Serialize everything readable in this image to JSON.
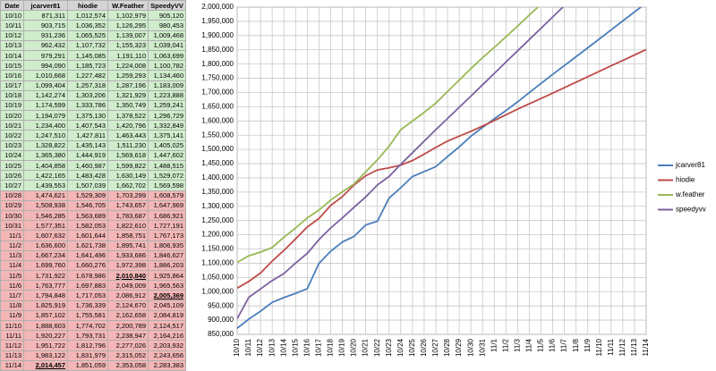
{
  "table": {
    "header": [
      "Date",
      "jcarver81",
      "hiodie",
      "W.Feather",
      "SpeedyVV"
    ]
  },
  "chart_data": {
    "type": "line",
    "categories": [
      "10/10",
      "10/11",
      "10/12",
      "10/13",
      "10/14",
      "10/15",
      "10/16",
      "10/17",
      "10/18",
      "10/19",
      "10/20",
      "10/21",
      "10/22",
      "10/23",
      "10/24",
      "10/25",
      "10/26",
      "10/27",
      "10/28",
      "10/29",
      "10/30",
      "10/31",
      "11/1",
      "11/2",
      "11/3",
      "11/4",
      "11/5",
      "11/6",
      "11/7",
      "11/8",
      "11/9",
      "11/10",
      "11/11",
      "11/12",
      "11/13",
      "11/14"
    ],
    "series": [
      {
        "name": "jcarver81",
        "color": "#4a7ebb",
        "values": [
          871311,
          903715,
          931236,
          962432,
          979291,
          994090,
          1010668,
          1099404,
          1142274,
          1174599,
          1194079,
          1234400,
          1247510,
          1328822,
          1365380,
          1404858,
          1422165,
          1439553,
          1474621,
          1508938,
          1546285,
          1577351,
          1607632,
          1636600,
          1667234,
          1699760,
          1731922,
          1763777,
          1794848,
          1825919,
          1857102,
          1888603,
          1920227,
          1951722,
          1983122,
          2014457
        ],
        "value_labels": [
          "871,311",
          "903,715",
          "931,236",
          "962,432",
          "979,291",
          "994,090",
          "1,010,668",
          "1,099,404",
          "1,142,274",
          "1,174,599",
          "1,194,079",
          "1,234,400",
          "1,247,510",
          "1,328,822",
          "1,365,380",
          "1,404,858",
          "1,422,165",
          "1,439,553",
          "1,474,621",
          "1,508,938",
          "1,546,285",
          "1,577,351",
          "1,607,632",
          "1,636,600",
          "1,667,234",
          "1,699,760",
          "1,731,922",
          "1,763,777",
          "1,794,848",
          "1,825,919",
          "1,857,102",
          "1,888,603",
          "1,920,227",
          "1,951,722",
          "1,983,122",
          "2,014,457"
        ]
      },
      {
        "name": "hiodie",
        "color": "#be4b48",
        "values": [
          1012574,
          1036352,
          1065525,
          1107732,
          1145085,
          1185723,
          1227482,
          1257318,
          1303206,
          1333786,
          1375130,
          1407543,
          1427811,
          1435143,
          1444919,
          1460987,
          1483428,
          1507039,
          1529309,
          1546705,
          1563689,
          1582053,
          1601644,
          1621738,
          1641496,
          1660276,
          1678986,
          1697883,
          1717053,
          1736339,
          1755581,
          1774702,
          1793731,
          1812796,
          1831979,
          1851059
        ],
        "value_labels": [
          "1,012,574",
          "1,036,352",
          "1,065,525",
          "1,107,732",
          "1,145,085",
          "1,185,723",
          "1,227,482",
          "1,257,318",
          "1,303,206",
          "1,333,786",
          "1,375,130",
          "1,407,543",
          "1,427,811",
          "1,435,143",
          "1,444,919",
          "1,460,987",
          "1,483,428",
          "1,507,039",
          "1,529,309",
          "1,546,705",
          "1,563,689",
          "1,582,053",
          "1,601,644",
          "1,621,738",
          "1,641,496",
          "1,660,276",
          "1,678,986",
          "1,697,883",
          "1,717,053",
          "1,736,339",
          "1,755,581",
          "1,774,702",
          "1,793,731",
          "1,812,796",
          "1,831,979",
          "1,851,059"
        ]
      },
      {
        "name": "w.feather",
        "color": "#98b954",
        "values": [
          1102979,
          1126295,
          1139007,
          1155323,
          1191110,
          1224008,
          1259293,
          1287196,
          1321929,
          1350749,
          1378522,
          1420796,
          1463443,
          1511230,
          1569618,
          1599822,
          1630149,
          1662702,
          1703299,
          1743657,
          1783687,
          1822610,
          1858751,
          1895741,
          1933686,
          1972398,
          2010840,
          2049009,
          2086912,
          2124670,
          2162658,
          2200789,
          2238947,
          2277026,
          2315052,
          2353058
        ],
        "value_labels": [
          "1,102,979",
          "1,126,295",
          "1,139,007",
          "1,155,323",
          "1,191,110",
          "1,224,008",
          "1,259,293",
          "1,287,196",
          "1,321,929",
          "1,350,749",
          "1,378,522",
          "1,420,796",
          "1,463,443",
          "1,511,230",
          "1,569,618",
          "1,599,822",
          "1,630,149",
          "1,662,702",
          "1,703,299",
          "1,743,657",
          "1,783,687",
          "1,822,610",
          "1,858,751",
          "1,895,741",
          "1,933,686",
          "1,972,398",
          "2,010,840",
          "2,049,009",
          "2,086,912",
          "2,124,670",
          "2,162,658",
          "2,200,789",
          "2,238,947",
          "2,277,026",
          "2,315,052",
          "2,353,058"
        ]
      },
      {
        "name": "speedyvv",
        "color": "#7d60a0",
        "values": [
          905120,
          980453,
          1009468,
          1039041,
          1063699,
          1100782,
          1134460,
          1183009,
          1223888,
          1259241,
          1296729,
          1332849,
          1375141,
          1405025,
          1447602,
          1488515,
          1529072,
          1569598,
          1608579,
          1647969,
          1686921,
          1727191,
          1767173,
          1806935,
          1846627,
          1886203,
          1925864,
          1965563,
          2005369,
          2045109,
          2084819,
          2124517,
          2164216,
          2203932,
          2243656,
          2283383
        ],
        "value_labels": [
          "905,120",
          "980,453",
          "1,009,468",
          "1,039,041",
          "1,063,699",
          "1,100,782",
          "1,134,460",
          "1,183,009",
          "1,223,888",
          "1,259,241",
          "1,296,729",
          "1,332,849",
          "1,375,141",
          "1,405,025",
          "1,447,602",
          "1,488,515",
          "1,529,072",
          "1,569,598",
          "1,608,579",
          "1,647,969",
          "1,686,921",
          "1,727,191",
          "1,767,173",
          "1,806,935",
          "1,846,627",
          "1,886,203",
          "1,925,864",
          "1,965,563",
          "2,005,369",
          "2,045,109",
          "2,084,819",
          "2,124,517",
          "2,164,216",
          "2,203,932",
          "2,243,656",
          "2,283,383"
        ]
      }
    ],
    "ylim": [
      850000,
      2000000
    ],
    "yticks": [
      {
        "value": 850000,
        "label": "850,000"
      },
      {
        "value": 900000,
        "label": "900,000"
      },
      {
        "value": 950000,
        "label": "950,000"
      },
      {
        "value": 1000000,
        "label": "1,000,000"
      },
      {
        "value": 1050000,
        "label": "1,050,000"
      },
      {
        "value": 1100000,
        "label": "1,100,000"
      },
      {
        "value": 1150000,
        "label": "1,150,000"
      },
      {
        "value": 1200000,
        "label": "1,200,000"
      },
      {
        "value": 1250000,
        "label": "1,250,000"
      },
      {
        "value": 1300000,
        "label": "1,300,000"
      },
      {
        "value": 1350000,
        "label": "1,350,000"
      },
      {
        "value": 1400000,
        "label": "1,400,000"
      },
      {
        "value": 1450000,
        "label": "1,450,000"
      },
      {
        "value": 1500000,
        "label": "1,500,000"
      },
      {
        "value": 1550000,
        "label": "1,550,000"
      },
      {
        "value": 1600000,
        "label": "1,600,000"
      },
      {
        "value": 1650000,
        "label": "1,650,000"
      },
      {
        "value": 1700000,
        "label": "1,700,000"
      },
      {
        "value": 1750000,
        "label": "1,750,000"
      },
      {
        "value": 1800000,
        "label": "1,800,000"
      },
      {
        "value": 1850000,
        "label": "1,850,000"
      },
      {
        "value": 1900000,
        "label": "1,900,000"
      },
      {
        "value": 1950000,
        "label": "1,950,000"
      },
      {
        "value": 2000000,
        "label": "2,000,000"
      }
    ],
    "grid": true,
    "legend": "right"
  }
}
